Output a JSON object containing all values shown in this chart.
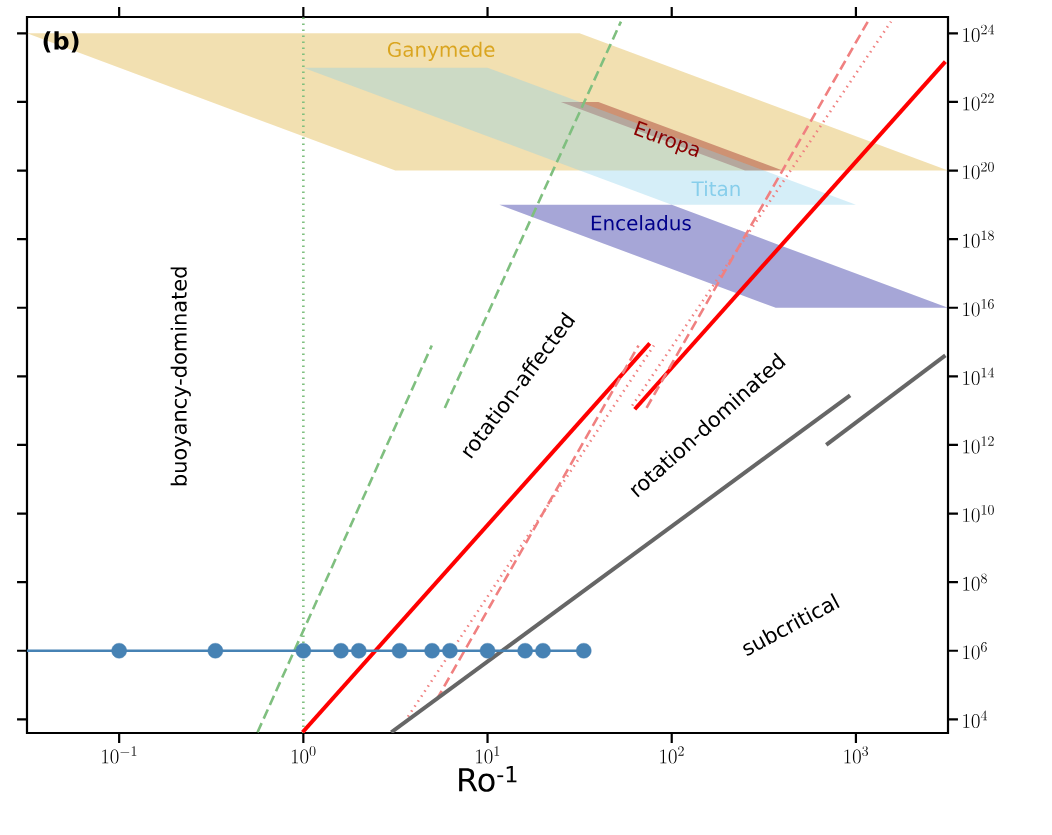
{
  "chart_data": {
    "type": "line",
    "log": "xy",
    "xlabel": "Ro$^{-1}$",
    "xlim": [
      0.0316,
      3162
    ],
    "ylim": [
      4000,
      3e+24
    ],
    "xticks": [
      {
        "value": 0.1,
        "label": "10^{-1}"
      },
      {
        "value": 1,
        "label": "10^{0}"
      },
      {
        "value": 10,
        "label": "10^{1}"
      },
      {
        "value": 100,
        "label": "10^{2}"
      },
      {
        "value": 1000,
        "label": "10^{3}"
      }
    ],
    "yticks": [
      {
        "value": 10000.0,
        "label": "10^{4}"
      },
      {
        "value": 1000000.0,
        "label": "10^{6}"
      },
      {
        "value": 100000000.0,
        "label": "10^{8}"
      },
      {
        "value": 10000000000.0,
        "label": "10^{10}"
      },
      {
        "value": 1000000000000.0,
        "label": "10^{12}"
      },
      {
        "value": 100000000000000.0,
        "label": "10^{14}"
      },
      {
        "value": 1e+16,
        "label": "10^{16}"
      },
      {
        "value": 1e+18,
        "label": "10^{18}"
      },
      {
        "value": 1e+20,
        "label": "10^{20}"
      },
      {
        "value": 1e+22,
        "label": "10^{22}"
      },
      {
        "value": 1e+24,
        "label": "10^{24}"
      }
    ],
    "series": [
      {
        "type": "area",
        "name": "Ganymede",
        "color": "#daa520",
        "x": [
          0.0316,
          3.16,
          31.6,
          3162
        ],
        "values": [
          null,
          null,
          null,
          null
        ],
        "lower": [
          1e+24,
          1e+20,
          1e+20,
          1e+20
        ],
        "upper": [
          1e+24,
          1e+24,
          1e+24,
          1e+20
        ]
      },
      {
        "type": "area",
        "name": "Enceladus",
        "color": "#00008b",
        "x": [
          11.6,
          100,
          367,
          3162
        ],
        "values": [
          null,
          null,
          null,
          null
        ],
        "lower": [
          1e+19,
          1.35e+17,
          1e+16,
          1e+16
        ],
        "upper": [
          1e+19,
          1e+19,
          7.4e+17,
          1e+16
        ]
      },
      {
        "type": "area",
        "name": "Europa",
        "color": "#8b0000",
        "x": [
          25,
          40,
          250,
          400
        ],
        "values": [
          null,
          null,
          null,
          null
        ],
        "lower": [
          1e+22,
          3.9e+21,
          1e+20,
          1e+20
        ],
        "upper": [
          1e+22,
          1e+22,
          2.56e+20,
          1e+20
        ]
      },
      {
        "type": "area",
        "name": "Titan",
        "color": "#87ceeb",
        "x": [
          1,
          10,
          100,
          1000
        ],
        "values": [
          null,
          null,
          null,
          null
        ],
        "lower": [
          1e+23,
          1e+21,
          1e+19,
          1e+19
        ],
        "upper": [
          1e+23,
          1e+23,
          1e+21,
          1e+19
        ]
      },
      {
        "color": "#7fbf7f",
        "line_style": "dashed",
        "x": [
          0.564,
          4.98
        ],
        "values": [
          4200,
          790000000000000.0
        ]
      },
      {
        "color": "#7fbf7f",
        "line_style": "dashed",
        "x": [
          5.86,
          53
        ],
        "values": [
          12000000000000.0,
          2.2e+24
        ]
      },
      {
        "color": "#ff0000",
        "x": [
          0.99,
          76
        ],
        "values": [
          4200,
          910000000000000.0
        ]
      },
      {
        "color": "#ff0000",
        "x": [
          63,
          3060
        ],
        "values": [
          11000000000000.0,
          1.5e+23
        ]
      },
      {
        "color": "#f08080",
        "line_style": "dashed",
        "x": [
          5.3,
          66
        ],
        "values": [
          38000,
          790000000000000.0
        ]
      },
      {
        "color": "#f08080",
        "line_style": "dashed",
        "x": [
          73,
          1160
        ],
        "values": [
          12000000000000.0,
          2.2e+24
        ]
      },
      {
        "color": "#f08080",
        "line_style": "dotted",
        "x": [
          3.7,
          80
        ],
        "values": [
          12000,
          790000000000000.0
        ]
      },
      {
        "color": "#f08080",
        "line_style": "dotted",
        "x": [
          61,
          1550
        ],
        "values": [
          14000000000000.0,
          2.2e+24
        ]
      },
      {
        "color": "#666666",
        "x": [
          3.0,
          930
        ],
        "values": [
          4200,
          28000000000000.0
        ]
      },
      {
        "color": "#666666",
        "x": [
          690,
          3060
        ],
        "values": [
          1000000000000.0,
          410000000000000.0
        ]
      },
      {
        "color": "#4682b4",
        "x": [
          0.0316,
          33.3
        ],
        "values": [
          1000000.0,
          1000000.0
        ]
      },
      {
        "type": "scatter",
        "color": "#4682b4",
        "marker": "circle",
        "x": [
          0.1,
          0.333,
          1,
          1.6,
          2,
          3.33,
          5,
          6.25,
          10,
          16,
          20,
          33.3
        ],
        "values": [
          1000000.0,
          1000000.0,
          1000000.0,
          1000000.0,
          1000000.0,
          1000000.0,
          1000000.0,
          1000000.0,
          1000000.0,
          1000000.0,
          1000000.0,
          1000000.0
        ]
      }
    ],
    "ref_lines": [
      {
        "axis": "x",
        "value": 1,
        "color": "#7fbf7f",
        "line_style": "dotted"
      }
    ],
    "annotations": [
      "(b)",
      "buoyancy-dominated",
      "rotation-affected",
      "rotation-dominated",
      "subcritical"
    ]
  }
}
